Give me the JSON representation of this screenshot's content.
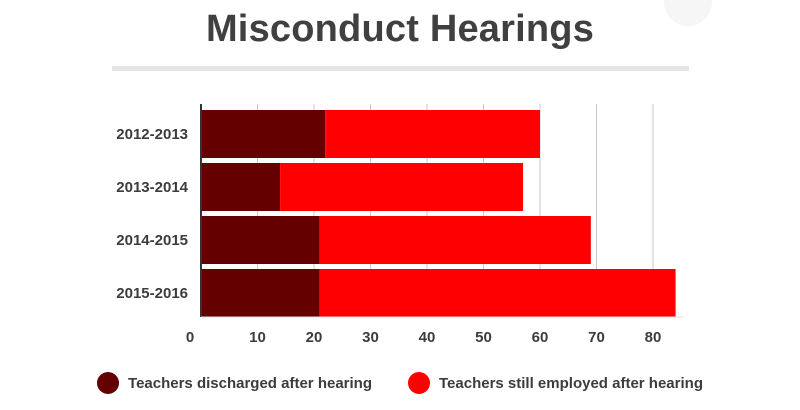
{
  "chart_data": {
    "type": "bar",
    "orientation": "horizontal",
    "stacked": true,
    "title": "Misconduct Hearings",
    "categories": [
      "2012-2013",
      "2013-2014",
      "2014-2015",
      "2015-2016"
    ],
    "series": [
      {
        "name": "Teachers discharged after hearing",
        "values": [
          22,
          14,
          21,
          21
        ],
        "color": "#650000"
      },
      {
        "name": "Teachers still employed after hearing",
        "values": [
          38,
          43,
          48,
          63
        ],
        "color": "#ff0000"
      }
    ],
    "xlim": [
      0,
      85
    ],
    "xticks": [
      0,
      10,
      20,
      30,
      40,
      50,
      60,
      70,
      80
    ],
    "grid": true,
    "legend": "bottom"
  }
}
